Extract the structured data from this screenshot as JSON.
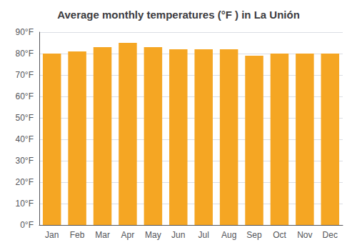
{
  "chart_data": {
    "type": "bar",
    "title": "Average monthly temperatures (°F ) in La Unión",
    "categories": [
      "Jan",
      "Feb",
      "Mar",
      "Apr",
      "May",
      "Jun",
      "Jul",
      "Aug",
      "Sep",
      "Oct",
      "Nov",
      "Dec"
    ],
    "values": [
      80,
      81,
      83,
      85,
      83,
      82,
      82,
      82,
      79,
      80,
      80,
      80
    ],
    "color": "#F5A623",
    "ylim": [
      0,
      90
    ],
    "yticks": [
      {
        "value": 0,
        "label": "0°F"
      },
      {
        "value": 10,
        "label": "10°F"
      },
      {
        "value": 20,
        "label": "20°F"
      },
      {
        "value": 30,
        "label": "30°F"
      },
      {
        "value": 40,
        "label": "40°F"
      },
      {
        "value": 50,
        "label": "50°F"
      },
      {
        "value": 60,
        "label": "60°F"
      },
      {
        "value": 70,
        "label": "70°F"
      },
      {
        "value": 80,
        "label": "80°F"
      },
      {
        "value": 90,
        "label": "90°F"
      }
    ],
    "grid": true
  }
}
